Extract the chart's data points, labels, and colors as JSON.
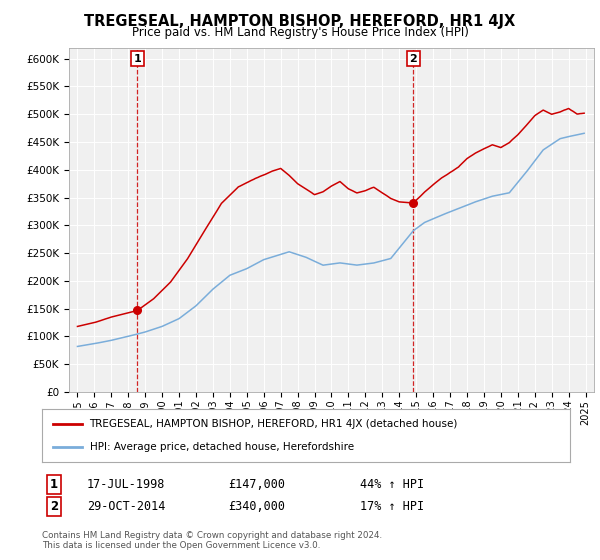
{
  "title": "TREGESEAL, HAMPTON BISHOP, HEREFORD, HR1 4JX",
  "subtitle": "Price paid vs. HM Land Registry's House Price Index (HPI)",
  "property_label": "TREGESEAL, HAMPTON BISHOP, HEREFORD, HR1 4JX (detached house)",
  "hpi_label": "HPI: Average price, detached house, Herefordshire",
  "sale1_date": "17-JUL-1998",
  "sale1_price": 147000,
  "sale1_pct": "44% ↑ HPI",
  "sale2_date": "29-OCT-2014",
  "sale2_price": 340000,
  "sale2_pct": "17% ↑ HPI",
  "footer": "Contains HM Land Registry data © Crown copyright and database right 2024.\nThis data is licensed under the Open Government Licence v3.0.",
  "property_color": "#cc0000",
  "hpi_color": "#7aadda",
  "sale1_x": 1998.54,
  "sale1_y": 147000,
  "sale2_x": 2014.83,
  "sale2_y": 340000,
  "ylim": [
    0,
    620000
  ],
  "xlim": [
    1994.5,
    2025.5
  ],
  "background_color": "#f0f0f0"
}
